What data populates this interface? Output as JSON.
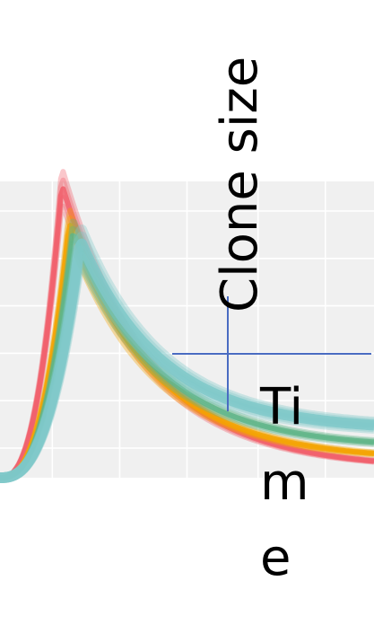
{
  "chart_data": {
    "type": "line",
    "title": "",
    "xlabel": "Time",
    "ylabel": "Clone size",
    "xlim": [
      0,
      1
    ],
    "ylim": [
      0,
      1
    ],
    "grid": true,
    "legend": "none",
    "series": [
      {
        "color": "#f25e6b",
        "peak_x": 0.165,
        "peak_y": 0.99,
        "tail_y": 0.03
      },
      {
        "color": "#f4a300",
        "peak_x": 0.185,
        "peak_y": 0.86,
        "tail_y": 0.06
      },
      {
        "color": "#5fb588",
        "peak_x": 0.195,
        "peak_y": 0.83,
        "tail_y": 0.1
      },
      {
        "color": "#7fc8c9",
        "peak_x": 0.215,
        "peak_y": 0.8,
        "tail_y": 0.16
      }
    ],
    "crosshair": {
      "color": "#4a6cc2"
    }
  }
}
